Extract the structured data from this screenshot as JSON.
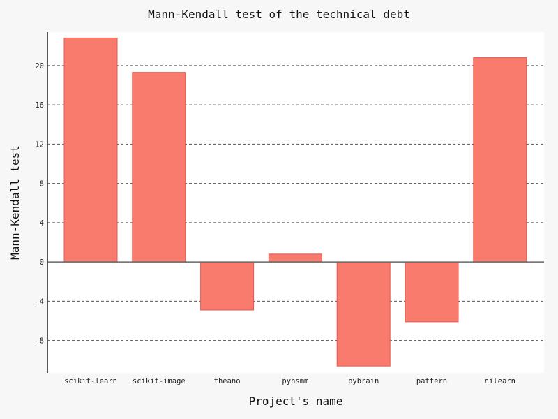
{
  "chart_data": {
    "type": "bar",
    "title": "Mann-Kendall test of the technical debt",
    "xlabel": "Project's name",
    "ylabel": "Mann-Kendall test",
    "categories": [
      "scikit-learn",
      "scikit-image",
      "theano",
      "pyhsmm",
      "pybrain",
      "pattern",
      "nilearn"
    ],
    "values": [
      22.8,
      19.3,
      -4.9,
      0.8,
      -10.6,
      -6.1,
      20.8
    ],
    "yticks": [
      -8,
      -4,
      0,
      4,
      8,
      12,
      16,
      20
    ],
    "ylim": [
      -11.3,
      23.4
    ],
    "grid": true,
    "bar_color": "#f87b6e",
    "background": "#f7f7f7",
    "plot_background": "#ffffff"
  }
}
